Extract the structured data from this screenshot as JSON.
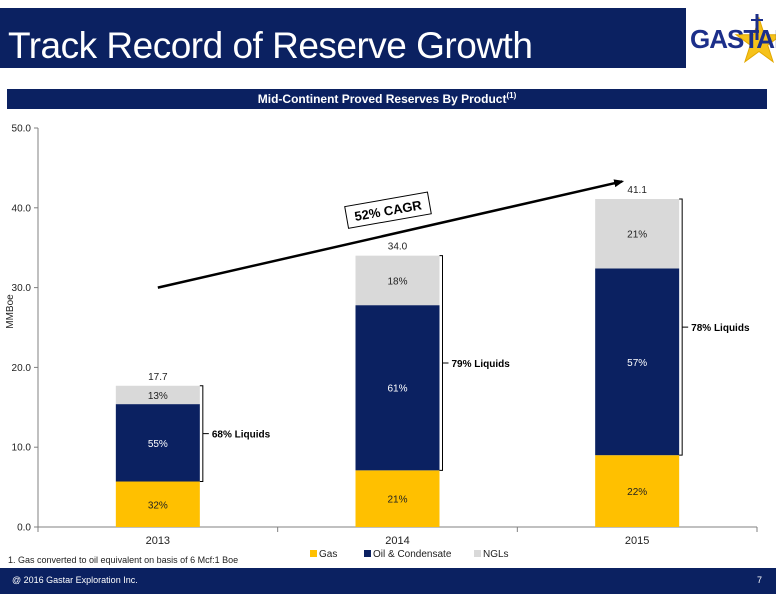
{
  "header": {
    "title": "Track Record of Reserve Growth",
    "logo_text": "GASTAR",
    "logo_icon": "star-icon"
  },
  "subtitle": {
    "text": "Mid-Continent Proved Reserves By Product",
    "sup": "(1)"
  },
  "chart_data": {
    "type": "bar",
    "stacked": true,
    "ylabel": "MMBoe",
    "ylim": [
      0,
      50
    ],
    "yticks": [
      "0.0",
      "10.0",
      "20.0",
      "30.0",
      "40.0",
      "50.0"
    ],
    "grid": false,
    "categories": [
      "2013",
      "2014",
      "2015"
    ],
    "totals": [
      "17.7",
      "34.0",
      "41.1"
    ],
    "total_values": [
      17.7,
      34.0,
      41.1
    ],
    "series": [
      {
        "name": "Gas",
        "color": "#ffc000",
        "values": [
          5.7,
          7.1,
          9.0
        ],
        "labels": [
          "32%",
          "21%",
          "22%"
        ]
      },
      {
        "name": "Oil & Condensate",
        "color": "#0b2161",
        "values": [
          9.7,
          20.7,
          23.4
        ],
        "labels": [
          "55%",
          "61%",
          "57%"
        ]
      },
      {
        "name": "NGLs",
        "color": "#d9d9d9",
        "values": [
          2.3,
          6.2,
          8.7
        ],
        "labels": [
          "13%",
          "18%",
          "21%"
        ]
      }
    ],
    "liquids_labels": [
      "68% Liquids",
      "79% Liquids",
      "78% Liquids"
    ],
    "cagr_label": "52% CAGR",
    "legend_position": "bottom"
  },
  "footnote": "1. Gas converted to oil equivalent on basis of 6 Mcf:1 Boe",
  "footer": {
    "copyright": "@ 2016 Gastar Exploration Inc.",
    "page": "7"
  }
}
